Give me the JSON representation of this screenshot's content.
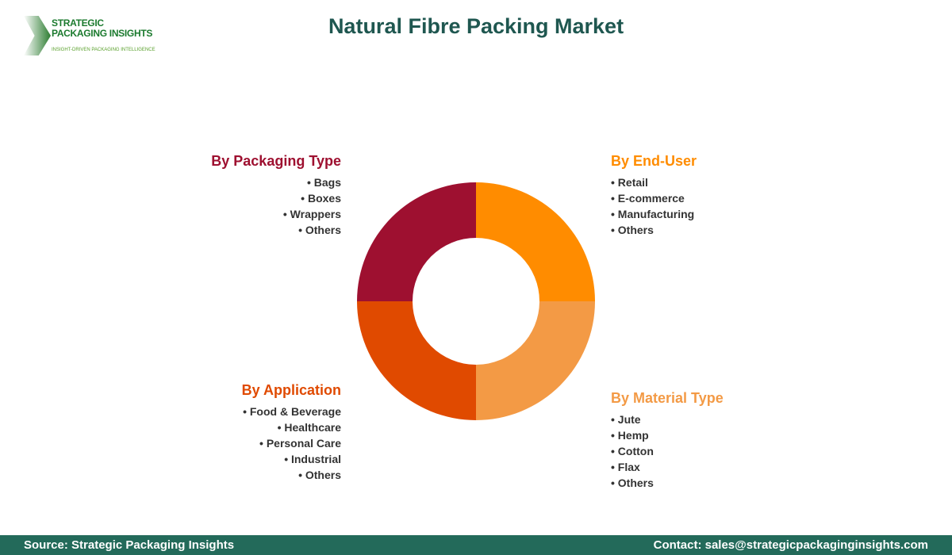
{
  "logo": {
    "line1": "STRATEGIC",
    "line2": "PACKAGING INSIGHTS",
    "tagline": "INSIGHT-DRIVEN PACKAGING INTELLIGENCE"
  },
  "title": "Natural Fibre Packing Market",
  "segments": [
    {
      "title": "By End-User",
      "color": "#ff8c00",
      "items": [
        "Retail",
        "E-commerce",
        "Manufacturing",
        "Others"
      ]
    },
    {
      "title": "By Material Type",
      "color": "#f39a45",
      "items": [
        "Jute",
        "Hemp",
        "Cotton",
        "Flax",
        "Others"
      ]
    },
    {
      "title": "By Application",
      "color": "#e04a00",
      "items": [
        "Food & Beverage",
        "Healthcare",
        "Personal Care",
        "Industrial",
        "Others"
      ]
    },
    {
      "title": "By Packaging Type",
      "color": "#9e1030",
      "items": [
        "Bags",
        "Boxes",
        "Wrappers",
        "Others"
      ]
    }
  ],
  "footer": {
    "source": "Source: Strategic Packaging Insights",
    "contact": "Contact: sales@strategicpackaginginsights.com"
  }
}
